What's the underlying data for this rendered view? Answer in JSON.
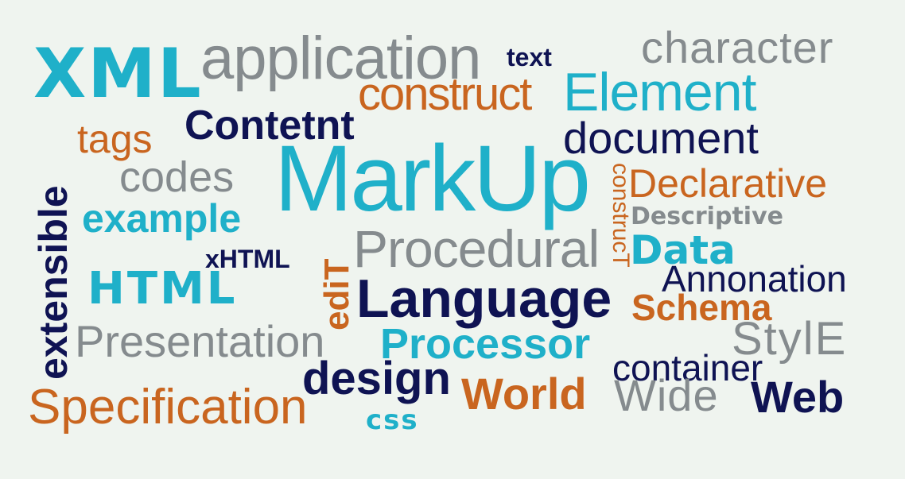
{
  "colors": {
    "background": "#eff4ef",
    "teal": "#1fb0c9",
    "gray": "#858b8e",
    "orange": "#c9651f",
    "navy": "#0f1353"
  },
  "words": {
    "xml": "XML",
    "application": "application",
    "text": "text",
    "character": "character",
    "construct": "construct",
    "element": "Element",
    "contetnt": "Contetnt",
    "tags": "tags",
    "document": "document",
    "extensible": "extensible",
    "codes": "codes",
    "markup": "MarkUp",
    "construct_vertical": "construcT",
    "declarative": "Declarative",
    "example": "example",
    "descriptive": "Descriptive",
    "xhtml": "xHTML",
    "edit": "ediT",
    "procedural": "Procedural",
    "data": "Data",
    "html": "HTML",
    "annonation": "Annonation",
    "language": "Language",
    "schema": "Schema",
    "style": "StylE",
    "presentation": "Presentation",
    "processor": "Processor",
    "container": "container",
    "design": "design",
    "world": "World",
    "wide": "Wide",
    "web": "Web",
    "specification": "Specification",
    "css": "css"
  }
}
